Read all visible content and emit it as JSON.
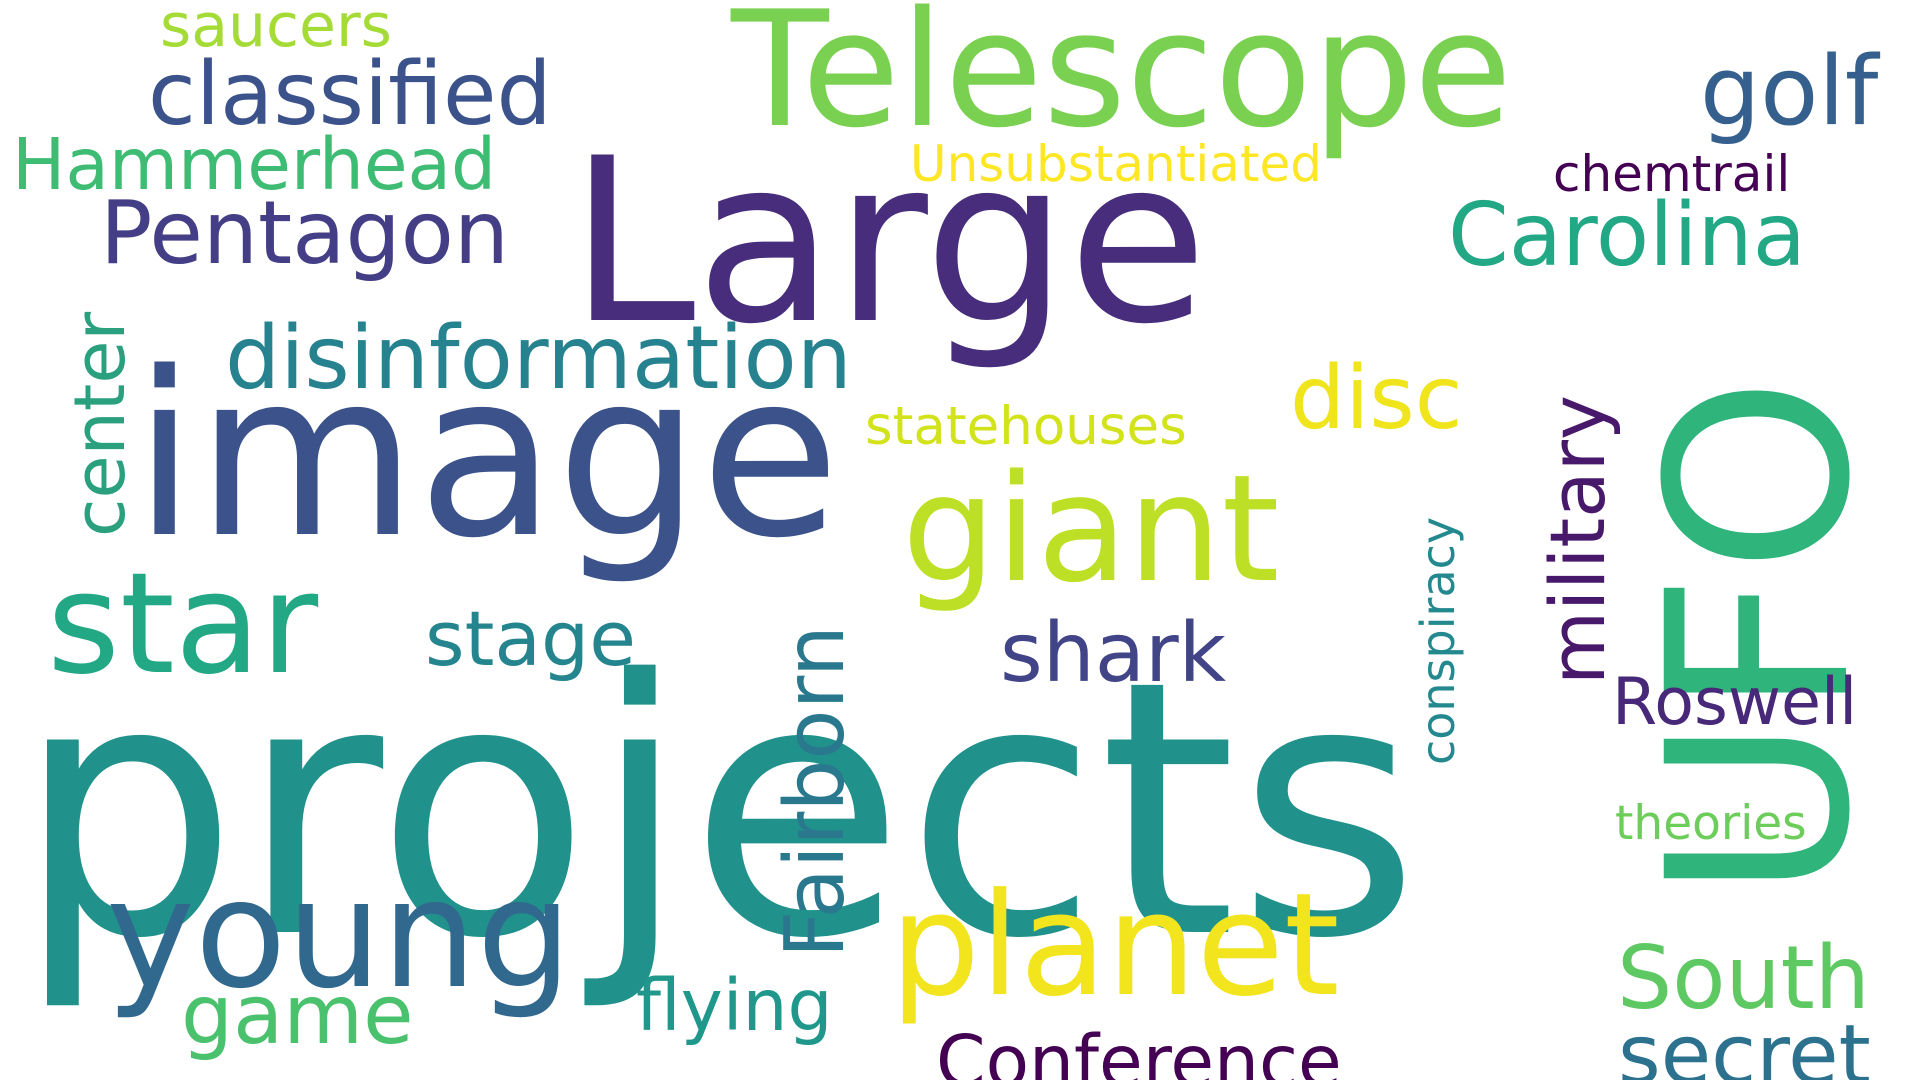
{
  "words": {
    "projects": {
      "text": "projects",
      "color": "#21918c"
    },
    "image": {
      "text": "image",
      "color": "#3b528b"
    },
    "large": {
      "text": "Large",
      "color": "#472d7b"
    },
    "telescope": {
      "text": "Telescope",
      "color": "#7ad151"
    },
    "ufo": {
      "text": "UFO",
      "color": "#2fb47c"
    },
    "giant": {
      "text": "giant",
      "color": "#bddf26"
    },
    "planet": {
      "text": "planet",
      "color": "#f2e51d"
    },
    "young": {
      "text": "young",
      "color": "#31688e"
    },
    "star": {
      "text": "star",
      "color": "#22a884"
    },
    "disinformation": {
      "text": "disinformation",
      "color": "#26828e"
    },
    "pentagon": {
      "text": "Pentagon",
      "color": "#433e85"
    },
    "classified": {
      "text": "classified",
      "color": "#3b528b"
    },
    "carolina": {
      "text": "Carolina",
      "color": "#22a884"
    },
    "hammerhead": {
      "text": "Hammerhead",
      "color": "#3fbc73"
    },
    "golf": {
      "text": "golf",
      "color": "#355f8d"
    },
    "disc": {
      "text": "disc",
      "color": "#f0e51c"
    },
    "fairborn": {
      "text": "Fairborn",
      "color": "#2a788e"
    },
    "military": {
      "text": "military",
      "color": "#48186a"
    },
    "center": {
      "text": "center",
      "color": "#2aa07f"
    },
    "shark": {
      "text": "shark",
      "color": "#414487"
    },
    "stage": {
      "text": "stage",
      "color": "#25858e"
    },
    "conference": {
      "text": "Conference",
      "color": "#440154"
    },
    "south": {
      "text": "South",
      "color": "#5ec962"
    },
    "secret": {
      "text": "secret",
      "color": "#2c728e"
    },
    "roswell": {
      "text": "Roswell",
      "color": "#482878"
    },
    "game": {
      "text": "game",
      "color": "#4ac16d"
    },
    "flying": {
      "text": "flying",
      "color": "#1f988b"
    },
    "saucers": {
      "text": "saucers",
      "color": "#a5db36"
    },
    "statehouses": {
      "text": "statehouses",
      "color": "#d2e21b"
    },
    "unsubstantiated": {
      "text": "Unsubstantiated",
      "color": "#fde725"
    },
    "chemtrail": {
      "text": "chemtrail",
      "color": "#440154"
    },
    "conspiracy": {
      "text": "conspiracy",
      "color": "#23898e"
    },
    "theories": {
      "text": "theories",
      "color": "#6ccd5a"
    }
  },
  "background": "#ffffff"
}
